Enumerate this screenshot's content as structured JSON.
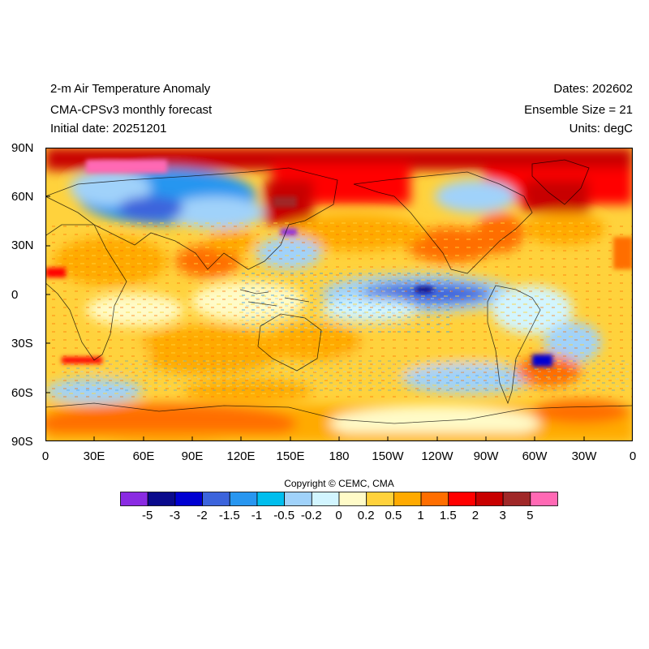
{
  "header": {
    "title": "2-m Air Temperature Anomaly",
    "subtitle": "CMA-CPSv3 monthly forecast",
    "initial_date": "Initial date: 20251201",
    "dates": "Dates: 202602",
    "ensemble": "Ensemble Size = 21",
    "units": "Units: degC"
  },
  "axes": {
    "lat_labels": [
      "90N",
      "60N",
      "30N",
      "0",
      "30S",
      "60S",
      "90S"
    ],
    "lon_labels": [
      "0",
      "30E",
      "60E",
      "90E",
      "120E",
      "150E",
      "180",
      "150W",
      "120W",
      "90W",
      "60W",
      "30W",
      "0"
    ]
  },
  "copyright": "Copyright © CEMC, CMA",
  "colorbar": {
    "colors": [
      "#8a2be2",
      "#0a0a8c",
      "#0000d2",
      "#3c64dc",
      "#2896f0",
      "#00beee",
      "#a0d2fa",
      "#d2f5ff",
      "#fffbc8",
      "#ffd23c",
      "#ffaa00",
      "#ff6e00",
      "#ff0000",
      "#c80000",
      "#a02828",
      "#ff69b4"
    ],
    "labels": [
      "-5",
      "-3",
      "-2",
      "-1.5",
      "-1",
      "-0.5",
      "-0.2",
      "0",
      "0.2",
      "0.5",
      "1",
      "1.5",
      "2",
      "3",
      "5"
    ]
  }
}
